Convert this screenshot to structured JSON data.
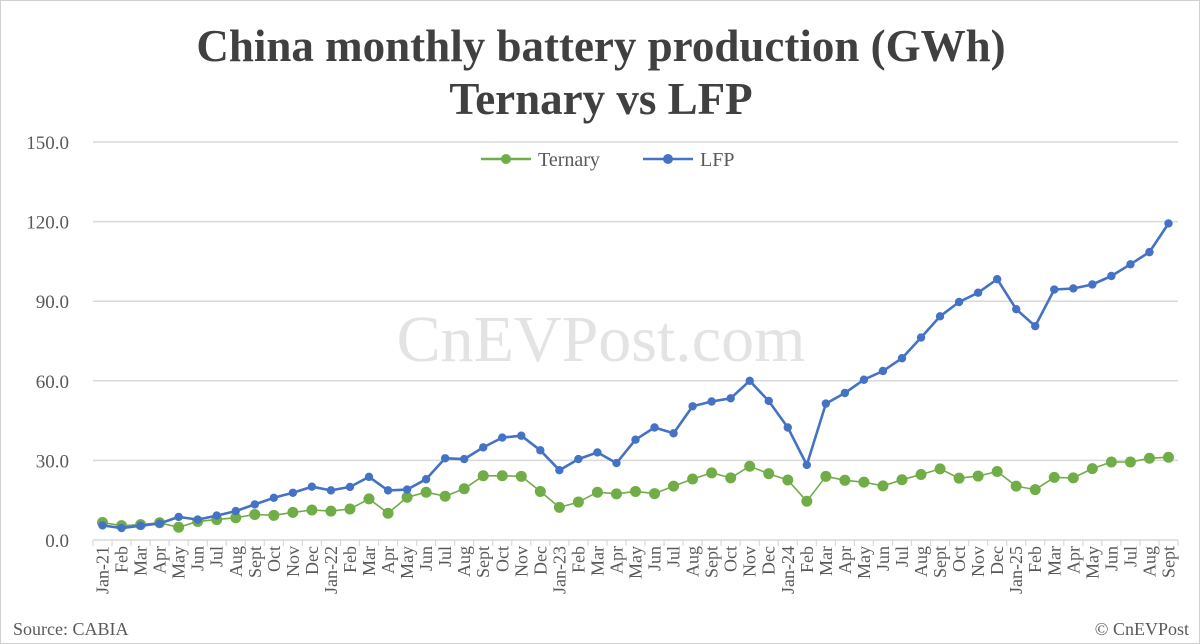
{
  "chart_data": {
    "type": "line",
    "title": "China monthly battery production (GWh)",
    "subtitle": "Ternary vs LFP",
    "xlabel": "",
    "ylabel": "",
    "ylim": [
      0,
      150
    ],
    "yticks": [
      "0.0",
      "30.0",
      "60.0",
      "90.0",
      "120.0",
      "150.0"
    ],
    "ytick_values": [
      0,
      30,
      60,
      90,
      120,
      150
    ],
    "grid": true,
    "legend_position": "top-center",
    "categories": [
      "Jan-21",
      "Feb",
      "Mar",
      "Apr",
      "May",
      "Jun",
      "Jul",
      "Aug",
      "Sept",
      "Oct",
      "Nov",
      "Dec",
      "Jan-22",
      "Feb",
      "Mar",
      "Apr",
      "May",
      "Jun",
      "Jul",
      "Aug",
      "Sept",
      "Oct",
      "Nov",
      "Dec",
      "Jan-23",
      "Feb",
      "Mar",
      "Apr",
      "May",
      "Jun",
      "Jul",
      "Aug",
      "Sept",
      "Oct",
      "Nov",
      "Dec",
      "Jan-24",
      "Feb",
      "Mar",
      "Apr",
      "May",
      "Jun",
      "Jul",
      "Aug",
      "Sept",
      "Oct",
      "Nov",
      "Dec",
      "Jan-25",
      "Feb",
      "Mar",
      "Apr",
      "May",
      "Jun",
      "Jul",
      "Aug",
      "Sept"
    ],
    "series": [
      {
        "name": "Ternary",
        "color": "#70ad47",
        "values": [
          6.6,
          5.4,
          5.8,
          6.5,
          4.8,
          7.0,
          7.7,
          8.4,
          9.6,
          9.3,
          10.4,
          11.3,
          10.9,
          11.7,
          15.5,
          10.1,
          16.1,
          18.0,
          16.5,
          19.3,
          24.2,
          24.2,
          24.0,
          18.3,
          12.3,
          14.3,
          18.0,
          17.4,
          18.3,
          17.5,
          20.3,
          23.0,
          25.3,
          23.4,
          27.8,
          25.0,
          22.6,
          14.6,
          24.0,
          22.5,
          21.8,
          20.4,
          22.7,
          24.7,
          26.8,
          23.3,
          24.1,
          25.8,
          20.3,
          19.0,
          23.6,
          23.4,
          26.9,
          29.4,
          29.4,
          30.8,
          31.2
        ]
      },
      {
        "name": "LFP",
        "color": "#4472c4",
        "values": [
          5.5,
          4.5,
          5.4,
          6.2,
          8.7,
          7.7,
          9.2,
          10.9,
          13.4,
          15.9,
          17.8,
          20.1,
          18.7,
          20.0,
          23.8,
          18.7,
          19.0,
          22.9,
          30.8,
          30.5,
          34.9,
          38.6,
          39.3,
          33.8,
          26.3,
          30.5,
          33.0,
          29.0,
          37.8,
          42.4,
          40.2,
          50.4,
          52.2,
          53.4,
          60.0,
          52.4,
          42.4,
          28.3,
          51.4,
          55.4,
          60.4,
          63.7,
          68.5,
          76.3,
          84.3,
          89.7,
          93.2,
          98.3,
          87.0,
          80.6,
          94.4,
          94.8,
          96.3,
          99.5,
          103.9,
          108.5,
          119.3
        ]
      }
    ]
  },
  "watermark": "CnEVPost.com",
  "source": "Source: CABIA",
  "copyright": "© CnEVPost"
}
